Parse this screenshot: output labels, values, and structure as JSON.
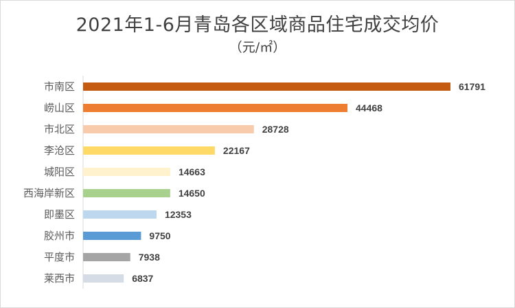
{
  "chart_data": {
    "type": "bar",
    "orientation": "horizontal",
    "title": "2021年1-6月青岛各区域商品住宅成交均价",
    "subtitle": "（元/㎡）",
    "xlabel": "",
    "ylabel": "",
    "xlim": [
      0,
      65000
    ],
    "grid": false,
    "legend": "none",
    "categories": [
      "市南区",
      "崂山区",
      "市北区",
      "李沧区",
      "城阳区",
      "西海岸新区",
      "即墨区",
      "胶州市",
      "平度市",
      "莱西市"
    ],
    "values": [
      61791,
      44468,
      28728,
      22167,
      14663,
      14650,
      12353,
      9750,
      7938,
      6837
    ],
    "colors": [
      "#c55a11",
      "#ed7d31",
      "#f8cbad",
      "#ffd966",
      "#fff2cc",
      "#a9d18e",
      "#bdd7ee",
      "#5b9bd5",
      "#a5a5a5",
      "#d6dce5"
    ]
  }
}
